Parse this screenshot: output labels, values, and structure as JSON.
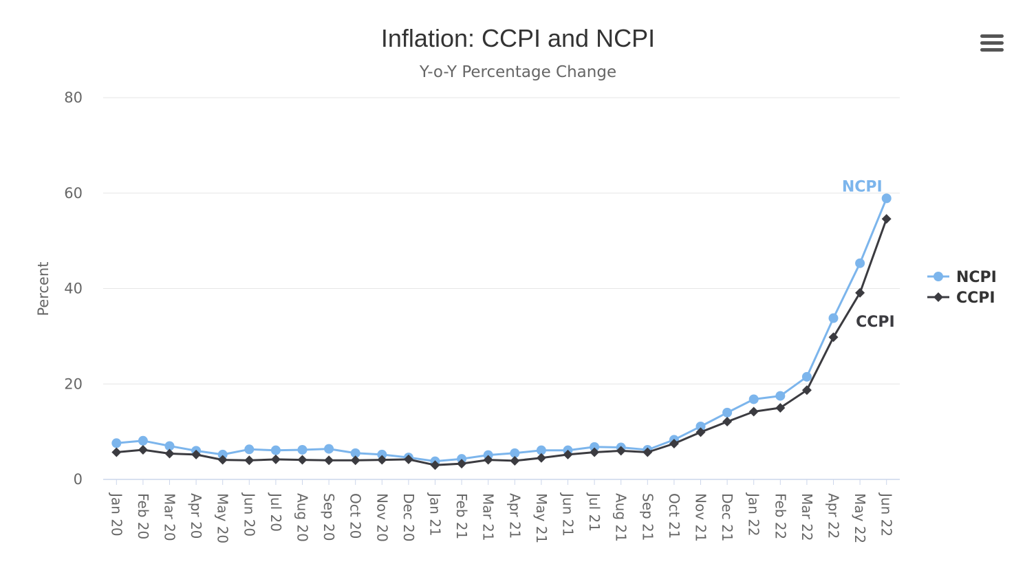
{
  "colors": {
    "ncpi": "#7cb5ec",
    "ccpi": "#3b3b40"
  },
  "menu": {
    "icon": "hamburger-menu-icon"
  },
  "chart_data": {
    "type": "line",
    "title": "Inflation: CCPI and NCPI",
    "subtitle": "Y-o-Y Percentage Change",
    "ylabel": "Percent",
    "xlabel": "",
    "ylim": [
      0,
      80
    ],
    "y_ticks": [
      "0",
      "20",
      "40",
      "60",
      "80"
    ],
    "y_tick_values": [
      0,
      20,
      40,
      60,
      80
    ],
    "grid": true,
    "legend_position": "right",
    "categories": [
      "Jan 20",
      "Feb 20",
      "Mar 20",
      "Apr 20",
      "May 20",
      "Jun 20",
      "Jul 20",
      "Aug 20",
      "Sep 20",
      "Oct 20",
      "Nov 20",
      "Dec 20",
      "Jan 21",
      "Feb 21",
      "Mar 21",
      "Apr 21",
      "May 21",
      "Jun 21",
      "Jul 21",
      "Aug 21",
      "Sep 21",
      "Oct 21",
      "Nov 21",
      "Dec 21",
      "Jan 22",
      "Feb 22",
      "Mar 22",
      "Apr 22",
      "May 22",
      "Jun 22"
    ],
    "series": [
      {
        "name": "NCPI",
        "end_label": "NCPI",
        "marker": "circle",
        "values": [
          7.6,
          8.1,
          7.0,
          6.0,
          5.2,
          6.3,
          6.1,
          6.2,
          6.4,
          5.5,
          5.2,
          4.6,
          3.8,
          4.3,
          5.1,
          5.5,
          6.1,
          6.1,
          6.8,
          6.7,
          6.2,
          8.3,
          11.1,
          14.0,
          16.8,
          17.5,
          21.5,
          33.8,
          45.3,
          58.9
        ]
      },
      {
        "name": "CCPI",
        "end_label": "CCPI",
        "marker": "diamond",
        "values": [
          5.7,
          6.2,
          5.4,
          5.2,
          4.1,
          4.0,
          4.2,
          4.1,
          4.0,
          4.0,
          4.1,
          4.2,
          3.0,
          3.3,
          4.1,
          3.9,
          4.5,
          5.2,
          5.7,
          6.0,
          5.7,
          7.5,
          9.9,
          12.1,
          14.2,
          15.0,
          18.7,
          29.8,
          39.1,
          54.6
        ]
      }
    ]
  }
}
